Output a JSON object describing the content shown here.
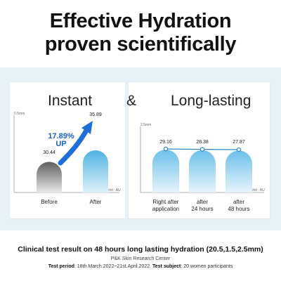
{
  "headline": {
    "line1": "Effective Hydration",
    "line2": "proven scientifically"
  },
  "section_titles": {
    "instant": "Instant",
    "ampersand": "&",
    "long_lasting": "Long-lasting"
  },
  "colors": {
    "band_bg": "#e6f2f7",
    "blue_light": "#dbeef8",
    "blue": "#5bb9e6",
    "gray_dark": "#6e6e6e",
    "arrow": "#1e6fd8",
    "arrow_text": "#1e5fc9"
  },
  "chart_data": [
    {
      "type": "bar",
      "ylabel": "0.5mm",
      "unit_label": "Unit : AU",
      "categories": [
        "Before",
        "After"
      ],
      "values": [
        30.44,
        35.89
      ],
      "value_labels": [
        "30.44",
        "35.89"
      ],
      "annotation": {
        "percent": "17.89%",
        "direction": "UP"
      }
    },
    {
      "type": "line",
      "ylabel": "2.5mm",
      "unit_label": "Unit : AU",
      "categories": [
        "Right after application",
        "after 24 hours",
        "after 48 hours"
      ],
      "category_lines": [
        [
          "Right after",
          "application"
        ],
        [
          "after",
          "24 hours"
        ],
        [
          "after",
          "48 hours"
        ]
      ],
      "values": [
        29.16,
        28.38,
        27.87
      ],
      "value_labels": [
        "29.16",
        "28.38",
        "27.87"
      ]
    }
  ],
  "footer": {
    "title": "Clinical test result on 48 hours long lasting hydration (20.5,1.5,2.5mm)",
    "center": "P&K Skin Research Center",
    "period_label": "Test period",
    "period_value": ": 18th.March.2022~21st.April.2022",
    "subject_label": "Test subject",
    "subject_value": ": 20 women participants"
  }
}
